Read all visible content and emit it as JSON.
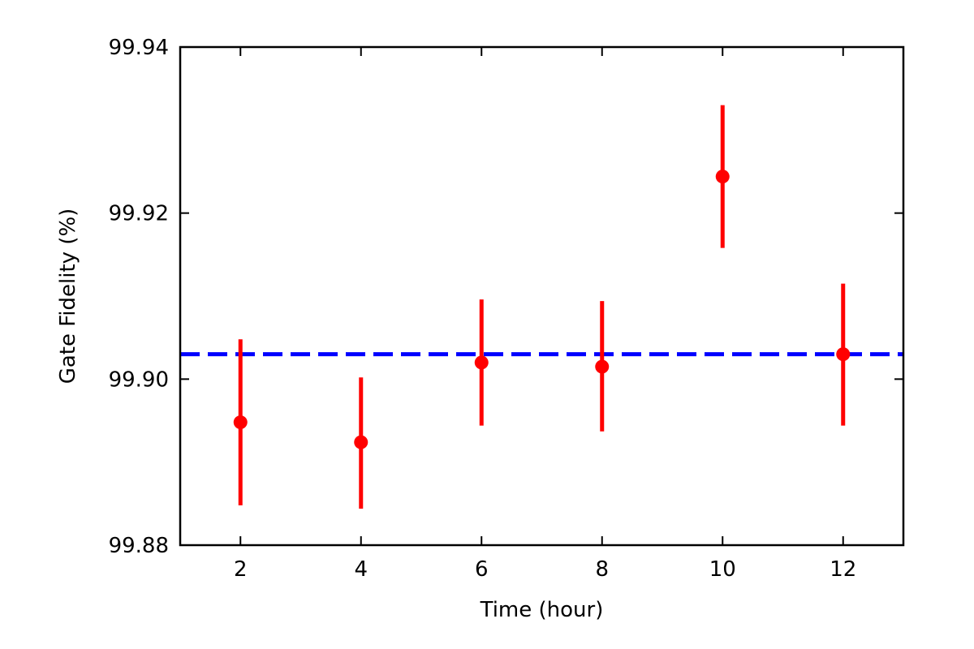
{
  "chart_data": {
    "type": "scatter",
    "xlabel": "Time (hour)",
    "ylabel": "Gate Fidelity (%)",
    "xlim": [
      1,
      13
    ],
    "ylim": [
      99.88,
      99.94
    ],
    "xticks": [
      2,
      4,
      6,
      8,
      10,
      12
    ],
    "yticks": [
      99.88,
      99.9,
      99.92,
      99.94
    ],
    "xtick_labels": [
      "2",
      "4",
      "6",
      "8",
      "10",
      "12"
    ],
    "ytick_labels": [
      "99.88",
      "99.90",
      "99.92",
      "99.94"
    ],
    "grid": false,
    "series": [
      {
        "color": "#ff0000",
        "marker": "circle",
        "points": [
          {
            "x": 2,
            "y": 99.8948,
            "err_low": 99.8848,
            "err_high": 99.9048
          },
          {
            "x": 4,
            "y": 99.8924,
            "err_low": 99.8844,
            "err_high": 99.9002
          },
          {
            "x": 6,
            "y": 99.902,
            "err_low": 99.8944,
            "err_high": 99.9096
          },
          {
            "x": 8,
            "y": 99.9015,
            "err_low": 99.8937,
            "err_high": 99.9094
          },
          {
            "x": 10,
            "y": 99.9244,
            "err_low": 99.9158,
            "err_high": 99.933
          },
          {
            "x": 12,
            "y": 99.903,
            "err_low": 99.8944,
            "err_high": 99.9115
          }
        ]
      }
    ],
    "reference_line": {
      "y": 99.903,
      "color": "#0000ff",
      "style": "dashed"
    }
  }
}
